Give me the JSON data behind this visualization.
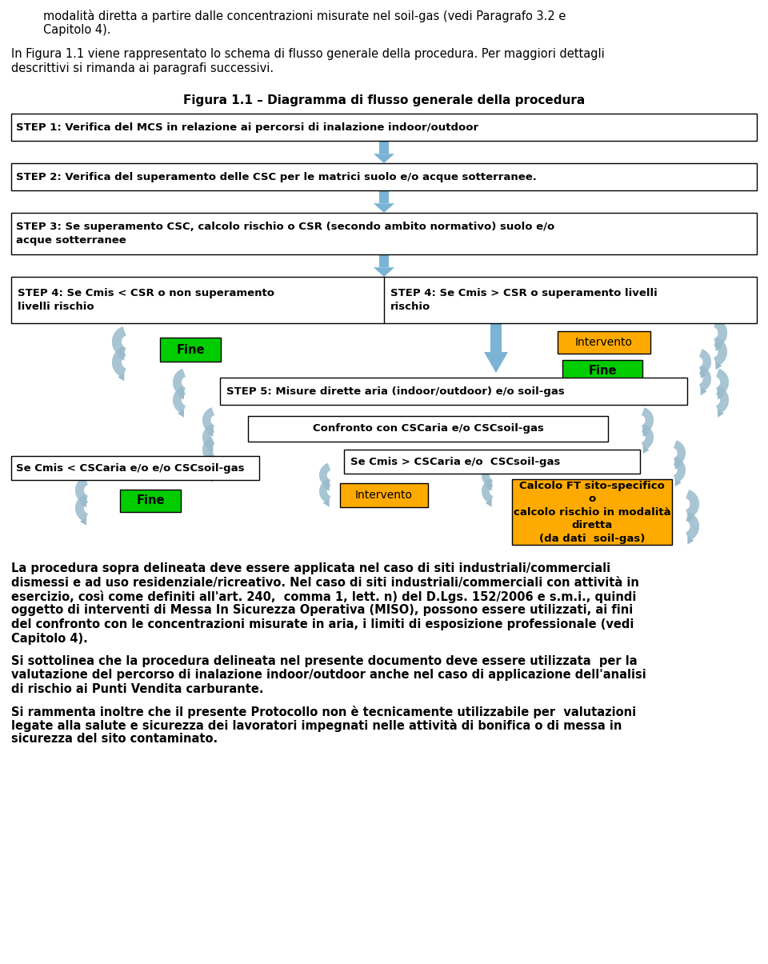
{
  "title_top1": "modalità diretta a partire dalle concentrazioni misurate nel soil-gas (vedi Paragrafo 3.2 e",
  "title_top2": "Capitolo 4).",
  "para1": "In Figura 1.1 viene rappresentato lo schema di flusso generale della procedura. Per maggiori dettagli",
  "para2": "descrittivi si rimanda ai paragrafi successivi.",
  "fig_title": "Figura 1.1 – Diagramma di flusso generale della procedura",
  "step1_text": "STEP 1: Verifica del MCS in relazione ai percorsi di inalazione indoor/outdoor",
  "step2_text": "STEP 2: Verifica del superamento delle CSC per le matrici suolo e/o acque sotterranee.",
  "step3_text": "STEP 3: Se superamento CSC, calcolo rischio o CSR (secondo ambito normativo) suolo e/o\nacque sotterranee",
  "step4a_text": "STEP 4: Se Cmis < CSR o non superamento\nlivelli rischio",
  "step4b_text": "STEP 4: Se Cmis > CSR o superamento livelli\nrischio",
  "step5_text": "STEP 5: Misure dirette aria (indoor/outdoor) e/o soil-gas",
  "confronto_text": "Confronto con CSCaria e/o CSCsoil-gas",
  "cmis_lt_text": "Se Cmis < CSCaria e/o e/o CSCsoil-gas",
  "cmis_gt_text": "Se Cmis > CSCaria e/o  CSCsoil-gas",
  "fine1_text": "Fine",
  "fine2_text": "Fine",
  "fine3_text": "Fine",
  "intervento1_text": "Intervento",
  "intervento2_text": "Intervento",
  "calcolo_text": "Calcolo FT sito-specifico\no\ncalcolo rischio in modalità\ndiretta\n(da dati  soil-gas)",
  "bottom_para1_lines": [
    "La procedura sopra delineata deve essere applicata nel caso di siti industriali/commerciali",
    "dismessi e ad uso residenziale/ricreativo. Nel caso di siti industriali/commerciali con attività in",
    "esercizio, così come definiti all'art. 240,  comma 1, lett. n) del D.Lgs. 152/2006 e s.m.i., quindi",
    "oggetto di interventi di Messa In Sicurezza Operativa (MISO), possono essere utilizzati, ai fini",
    "del confronto con le concentrazioni misurate in aria, i limiti di esposizione professionale (vedi",
    "Capitolo 4)."
  ],
  "bottom_para2_lines": [
    "Si sottolinea che la procedura delineata nel presente documento deve essere utilizzata  per la",
    "valutazione del percorso di inalazione indoor/outdoor anche nel caso di applicazione dell'analisi",
    "di rischio ai Punti Vendita carburante."
  ],
  "bottom_para3_lines": [
    "Si rammenta inoltre che il presente Protocollo non è tecnicamente utilizzabile per  valutazioni",
    "legate alla salute e sicurezza dei lavoratori impegnati nelle attività di bonifica o di messa in",
    "sicurezza del sito contaminato."
  ],
  "box_fill_white": "#ffffff",
  "box_fill_green": "#00cc00",
  "box_fill_orange": "#ffaa00",
  "arrow_blue": "#7ab3d4",
  "chevron_color": "#99bbcc",
  "bg_color": "#ffffff"
}
